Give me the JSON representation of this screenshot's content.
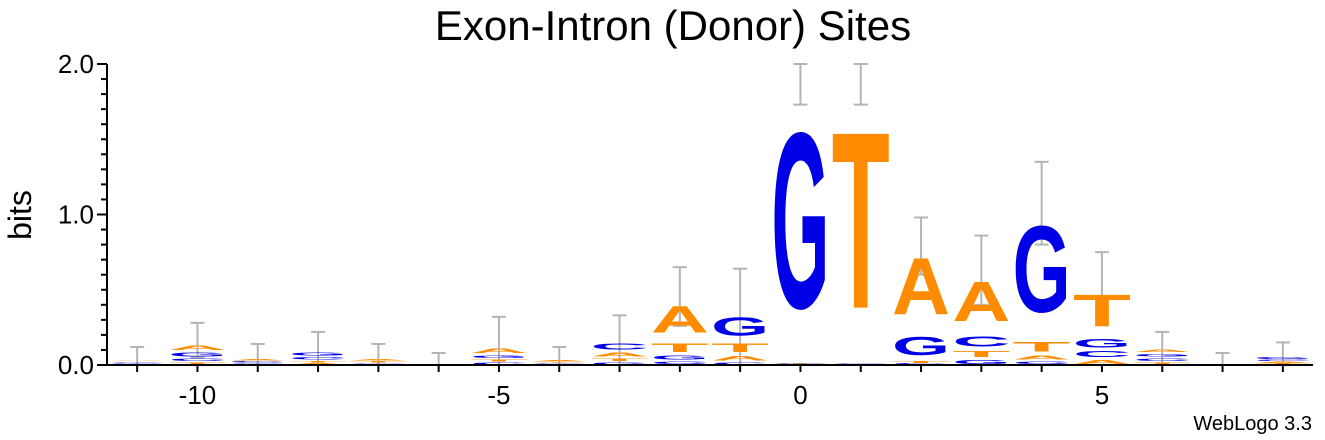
{
  "chart_data": {
    "type": "sequence_logo",
    "title": "Exon-Intron (Donor) Sites",
    "ylabel": "bits",
    "xlabel": "",
    "credit": "WebLogo 3.3",
    "ylim": [
      0,
      2.0
    ],
    "xlim": [
      -11.5,
      8.5
    ],
    "y_major_ticks": [
      "0.0",
      "1.0",
      "2.0"
    ],
    "x_ticks": [
      "-10",
      "-5",
      "0",
      "5"
    ],
    "colors": {
      "A": "#ff8c00",
      "T": "#ff8c00",
      "G": "#0000e6",
      "C": "#0000e6"
    },
    "error_bar_color": "#b4b4b4",
    "positions": [
      {
        "pos": -11,
        "stack": [
          [
            "T",
            0.008
          ],
          [
            "G",
            0.008
          ],
          [
            "C",
            0.008
          ],
          [
            "A",
            0.008
          ]
        ],
        "err": [
          0.0,
          0.12
        ]
      },
      {
        "pos": -10,
        "stack": [
          [
            "T",
            0.02
          ],
          [
            "C",
            0.03
          ],
          [
            "G",
            0.04
          ],
          [
            "A",
            0.05
          ]
        ],
        "err": [
          0.05,
          0.28
        ]
      },
      {
        "pos": -9,
        "stack": [
          [
            "T",
            0.008
          ],
          [
            "G",
            0.008
          ],
          [
            "C",
            0.01
          ],
          [
            "A",
            0.012
          ]
        ],
        "err": [
          0.0,
          0.14
        ]
      },
      {
        "pos": -8,
        "stack": [
          [
            "A",
            0.015
          ],
          [
            "T",
            0.015
          ],
          [
            "C",
            0.025
          ],
          [
            "G",
            0.035
          ]
        ],
        "err": [
          0.0,
          0.22
        ]
      },
      {
        "pos": -7,
        "stack": [
          [
            "C",
            0.008
          ],
          [
            "G",
            0.008
          ],
          [
            "T",
            0.01
          ],
          [
            "A",
            0.012
          ]
        ],
        "err": [
          0.0,
          0.14
        ]
      },
      {
        "pos": -6,
        "stack": [
          [
            "A",
            0.002
          ],
          [
            "T",
            0.002
          ],
          [
            "G",
            0.002
          ],
          [
            "C",
            0.002
          ]
        ],
        "err": [
          0.0,
          0.08
        ]
      },
      {
        "pos": -5,
        "stack": [
          [
            "C",
            0.02
          ],
          [
            "T",
            0.02
          ],
          [
            "G",
            0.03
          ],
          [
            "A",
            0.05
          ]
        ],
        "err": [
          0.0,
          0.32
        ]
      },
      {
        "pos": -4,
        "stack": [
          [
            "G",
            0.006
          ],
          [
            "C",
            0.006
          ],
          [
            "T",
            0.008
          ],
          [
            "A",
            0.01
          ]
        ],
        "err": [
          0.0,
          0.12
        ]
      },
      {
        "pos": -3,
        "stack": [
          [
            "G",
            0.02
          ],
          [
            "T",
            0.03
          ],
          [
            "A",
            0.04
          ],
          [
            "C",
            0.06
          ]
        ],
        "err": [
          0.0,
          0.33
        ]
      },
      {
        "pos": -2,
        "stack": [
          [
            "C",
            0.03
          ],
          [
            "G",
            0.04
          ],
          [
            "T",
            0.09
          ],
          [
            "A",
            0.28
          ]
        ],
        "err": [
          0.26,
          0.65
        ]
      },
      {
        "pos": -1,
        "stack": [
          [
            "C",
            0.02
          ],
          [
            "A",
            0.05
          ],
          [
            "T",
            0.09
          ],
          [
            "G",
            0.19
          ]
        ],
        "err": [
          0.0,
          0.64
        ]
      },
      {
        "pos": 0,
        "stack": [
          [
            "A",
            0.005
          ],
          [
            "T",
            0.005
          ],
          [
            "C",
            0.005
          ],
          [
            "G",
            1.87
          ]
        ],
        "err": [
          1.73,
          2.0
        ]
      },
      {
        "pos": 1,
        "stack": [
          [
            "A",
            0.004
          ],
          [
            "G",
            0.004
          ],
          [
            "C",
            0.004
          ],
          [
            "T",
            1.88
          ]
        ],
        "err": [
          1.73,
          2.0
        ]
      },
      {
        "pos": 2,
        "stack": [
          [
            "C",
            0.01
          ],
          [
            "T",
            0.02
          ],
          [
            "G",
            0.19
          ],
          [
            "A",
            0.6
          ]
        ],
        "err": [
          0.6,
          0.98
        ]
      },
      {
        "pos": 3,
        "stack": [
          [
            "G",
            0.04
          ],
          [
            "T",
            0.06
          ],
          [
            "C",
            0.11
          ],
          [
            "A",
            0.42
          ]
        ],
        "err": [
          0.4,
          0.86
        ]
      },
      {
        "pos": 4,
        "stack": [
          [
            "C",
            0.03
          ],
          [
            "A",
            0.04
          ],
          [
            "T",
            0.1
          ],
          [
            "G",
            0.92
          ]
        ],
        "err": [
          0.8,
          1.35
        ]
      },
      {
        "pos": 5,
        "stack": [
          [
            "A",
            0.04
          ],
          [
            "C",
            0.06
          ],
          [
            "G",
            0.09
          ],
          [
            "T",
            0.34
          ]
        ],
        "err": [
          0.32,
          0.75
        ]
      },
      {
        "pos": 6,
        "stack": [
          [
            "T",
            0.02
          ],
          [
            "C",
            0.03
          ],
          [
            "G",
            0.03
          ],
          [
            "A",
            0.03
          ]
        ],
        "err": [
          0.0,
          0.22
        ]
      },
      {
        "pos": 7,
        "stack": [
          [
            "A",
            0.002
          ],
          [
            "T",
            0.002
          ],
          [
            "G",
            0.002
          ],
          [
            "C",
            0.002
          ]
        ],
        "err": [
          0.0,
          0.08
        ]
      },
      {
        "pos": 8,
        "stack": [
          [
            "T",
            0.01
          ],
          [
            "A",
            0.012
          ],
          [
            "C",
            0.015
          ],
          [
            "G",
            0.02
          ]
        ],
        "err": [
          0.0,
          0.15
        ]
      }
    ]
  }
}
